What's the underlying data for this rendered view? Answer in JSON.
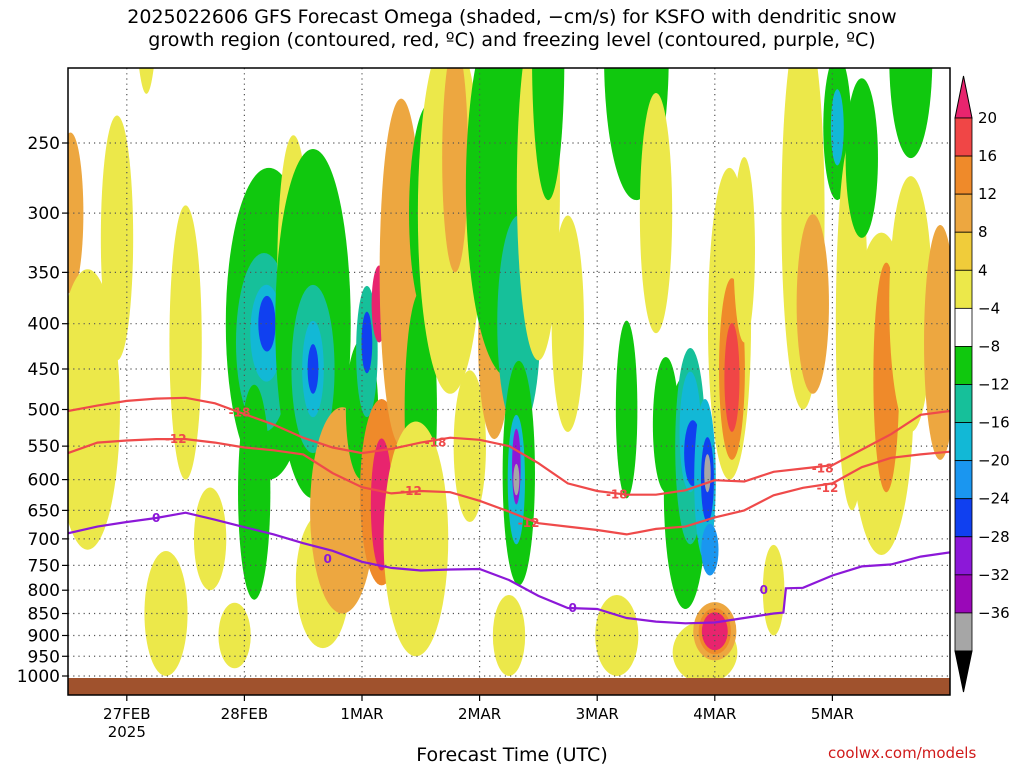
{
  "title": {
    "line1": "2025022606 GFS Forecast Omega (shaded, −cm/s) for KSFO with dendritic snow",
    "line2": "growth region (contoured, red, ºC) and freezing level (contoured, purple, ºC)"
  },
  "credit": "coolwx.com/models",
  "chart_data": {
    "type": "heatmap",
    "xlabel": "Forecast Time (UTC)",
    "ylabel": "",
    "x_tick_labels": [
      "27FEB",
      "28FEB",
      "1MAR",
      "2MAR",
      "3MAR",
      "4MAR",
      "5MAR"
    ],
    "x_tick_hours": [
      18,
      42,
      66,
      90,
      114,
      138,
      162
    ],
    "x_sublabel": "2025",
    "xlim_hours": [
      6,
      186
    ],
    "y_ticks": [
      250,
      300,
      350,
      400,
      450,
      500,
      550,
      600,
      650,
      700,
      750,
      800,
      850,
      900,
      950,
      1000
    ],
    "ylim": [
      200,
      1025
    ],
    "y_scale": "log-pressure",
    "grid": true,
    "colorbar": {
      "labels": [
        "20",
        "16",
        "12",
        "8",
        "4",
        "−4",
        "−8",
        "−12",
        "−16",
        "−20",
        "−24",
        "−28",
        "−32",
        "−36"
      ],
      "colors": [
        "#e8246e",
        "#f04646",
        "#ef8a2a",
        "#eda740",
        "#f0cc3a",
        "#ece84a",
        "#ffffff",
        "#10c80e",
        "#16c09a",
        "#12b8d6",
        "#1a96f0",
        "#1040f0",
        "#8c18d8",
        "#9a08b8",
        "#a6a6a6",
        "#000000"
      ]
    },
    "omega_regions": [
      {
        "x": 6.5,
        "p": 300,
        "rx": 1.2,
        "rp": 70,
        "level": 8
      },
      {
        "x": 10,
        "p": 500,
        "rx": 3,
        "rp": 220,
        "level": 4
      },
      {
        "x": 16,
        "p": 320,
        "rx": 1.5,
        "rp": 120,
        "level": 4
      },
      {
        "x": 22,
        "p": 150,
        "rx": 1.2,
        "rp": 70,
        "level": 4
      },
      {
        "x": 26,
        "p": 850,
        "rx": 2,
        "rp": 150,
        "level": 4
      },
      {
        "x": 30,
        "p": 420,
        "rx": 1.5,
        "rp": 180,
        "level": 4
      },
      {
        "x": 35,
        "p": 700,
        "rx": 1.5,
        "rp": 100,
        "level": 4
      },
      {
        "x": 40,
        "p": 900,
        "rx": 1.5,
        "rp": 80,
        "level": 4
      },
      {
        "x": 47,
        "p": 400,
        "rx": 4,
        "rp": 200,
        "level": -8
      },
      {
        "x": 46,
        "p": 420,
        "rx": 2.6,
        "rp": 110,
        "level": -12
      },
      {
        "x": 46.5,
        "p": 410,
        "rx": 1.5,
        "rp": 55,
        "level": -16
      },
      {
        "x": 46.6,
        "p": 400,
        "rx": 0.8,
        "rp": 30,
        "level": -24
      },
      {
        "x": 44,
        "p": 620,
        "rx": 1.5,
        "rp": 200,
        "level": -8
      },
      {
        "x": 52,
        "p": 350,
        "rx": 1.5,
        "rp": 150,
        "level": 4
      },
      {
        "x": 56,
        "p": 400,
        "rx": 3.5,
        "rp": 230,
        "level": -8
      },
      {
        "x": 56,
        "p": 450,
        "rx": 2,
        "rp": 110,
        "level": -12
      },
      {
        "x": 56,
        "p": 450,
        "rx": 1,
        "rp": 60,
        "level": -16
      },
      {
        "x": 56,
        "p": 450,
        "rx": 0.5,
        "rp": 30,
        "level": -24
      },
      {
        "x": 58,
        "p": 780,
        "rx": 2.5,
        "rp": 150,
        "level": 4
      },
      {
        "x": 62,
        "p": 650,
        "rx": 3,
        "rp": 200,
        "level": 8
      },
      {
        "x": 66,
        "p": 500,
        "rx": 1.5,
        "rp": 100,
        "level": -8
      },
      {
        "x": 67,
        "p": 430,
        "rx": 1,
        "rp": 80,
        "level": -12
      },
      {
        "x": 67,
        "p": 420,
        "rx": 0.5,
        "rp": 35,
        "level": -24
      },
      {
        "x": 70,
        "p": 620,
        "rx": 2,
        "rp": 170,
        "level": 12
      },
      {
        "x": 70,
        "p": 640,
        "rx": 1,
        "rp": 120,
        "level": 20
      },
      {
        "x": 69.5,
        "p": 380,
        "rx": 0.7,
        "rp": 40,
        "level": 20
      },
      {
        "x": 74,
        "p": 350,
        "rx": 2,
        "rp": 200,
        "level": 8
      },
      {
        "x": 78,
        "p": 500,
        "rx": 1.5,
        "rp": 180,
        "level": -8
      },
      {
        "x": 77,
        "p": 700,
        "rx": 3,
        "rp": 250,
        "level": 4
      },
      {
        "x": 80,
        "p": 300,
        "rx": 2,
        "rp": 100,
        "level": -8
      },
      {
        "x": 84,
        "p": 300,
        "rx": 3,
        "rp": 180,
        "level": 4
      },
      {
        "x": 85,
        "p": 260,
        "rx": 1.2,
        "rp": 90,
        "level": 8
      },
      {
        "x": 88,
        "p": 550,
        "rx": 1.5,
        "rp": 120,
        "level": 4
      },
      {
        "x": 93,
        "p": 420,
        "rx": 1.5,
        "rp": 120,
        "level": 8
      },
      {
        "x": 96,
        "p": 280,
        "rx": 4,
        "rp": 180,
        "level": -8
      },
      {
        "x": 98,
        "p": 400,
        "rx": 2,
        "rp": 130,
        "level": -12
      },
      {
        "x": 98,
        "p": 590,
        "rx": 1.5,
        "rp": 200,
        "level": -8
      },
      {
        "x": 97.5,
        "p": 600,
        "rx": 0.8,
        "rp": 110,
        "level": -16
      },
      {
        "x": 97.5,
        "p": 580,
        "rx": 0.4,
        "rp": 60,
        "level": -28
      },
      {
        "x": 97.5,
        "p": 600,
        "rx": 0.2,
        "rp": 25,
        "level": -32
      },
      {
        "x": 96,
        "p": 900,
        "rx": 1.5,
        "rp": 100,
        "level": 4
      },
      {
        "x": 102,
        "p": 280,
        "rx": 2,
        "rp": 160,
        "level": 4
      },
      {
        "x": 104,
        "p": 200,
        "rx": 1.5,
        "rp": 90,
        "level": -8
      },
      {
        "x": 108,
        "p": 400,
        "rx": 1.5,
        "rp": 130,
        "level": 4
      },
      {
        "x": 118,
        "p": 900,
        "rx": 2,
        "rp": 100,
        "level": 4
      },
      {
        "x": 122,
        "p": 200,
        "rx": 3,
        "rp": 90,
        "level": -8
      },
      {
        "x": 120,
        "p": 500,
        "rx": 1,
        "rp": 130,
        "level": -8
      },
      {
        "x": 126,
        "p": 300,
        "rx": 1.5,
        "rp": 110,
        "level": 4
      },
      {
        "x": 128,
        "p": 520,
        "rx": 1.2,
        "rp": 100,
        "level": -8
      },
      {
        "x": 132,
        "p": 620,
        "rx": 2,
        "rp": 220,
        "level": -8
      },
      {
        "x": 133,
        "p": 550,
        "rx": 1.4,
        "rp": 160,
        "level": -12
      },
      {
        "x": 133,
        "p": 530,
        "rx": 1,
        "rp": 90,
        "level": -16
      },
      {
        "x": 133.5,
        "p": 560,
        "rx": 0.8,
        "rp": 50,
        "level": -24
      },
      {
        "x": 136,
        "p": 600,
        "rx": 1,
        "rp": 140,
        "level": -16
      },
      {
        "x": 136.5,
        "p": 600,
        "rx": 0.6,
        "rp": 70,
        "level": -24
      },
      {
        "x": 136.5,
        "p": 590,
        "rx": 0.3,
        "rp": 30,
        "level": -32
      },
      {
        "x": 137,
        "p": 720,
        "rx": 0.8,
        "rp": 50,
        "level": -20
      },
      {
        "x": 136,
        "p": 940,
        "rx": 3,
        "rp": 80,
        "level": 4
      },
      {
        "x": 138,
        "p": 890,
        "rx": 2,
        "rp": 70,
        "level": 8
      },
      {
        "x": 138,
        "p": 890,
        "rx": 1.5,
        "rp": 55,
        "level": 12
      },
      {
        "x": 138,
        "p": 890,
        "rx": 1.2,
        "rp": 45,
        "level": 20
      },
      {
        "x": 141,
        "p": 400,
        "rx": 2,
        "rp": 200,
        "level": 4
      },
      {
        "x": 141.5,
        "p": 450,
        "rx": 1.2,
        "rp": 120,
        "level": 12
      },
      {
        "x": 141.5,
        "p": 460,
        "rx": 0.7,
        "rp": 70,
        "level": 16
      },
      {
        "x": 144,
        "p": 330,
        "rx": 1,
        "rp": 90,
        "level": 4
      },
      {
        "x": 150,
        "p": 800,
        "rx": 1,
        "rp": 100,
        "level": 4
      },
      {
        "x": 156,
        "p": 300,
        "rx": 2,
        "rp": 200,
        "level": 4
      },
      {
        "x": 158,
        "p": 380,
        "rx": 1.5,
        "rp": 100,
        "level": 8
      },
      {
        "x": 163,
        "p": 240,
        "rx": 1.3,
        "rp": 50,
        "level": -8
      },
      {
        "x": 163,
        "p": 240,
        "rx": 0.6,
        "rp": 25,
        "level": -16
      },
      {
        "x": 166,
        "p": 400,
        "rx": 1.5,
        "rp": 250,
        "level": 4
      },
      {
        "x": 168,
        "p": 260,
        "rx": 1.5,
        "rp": 60,
        "level": -8
      },
      {
        "x": 172,
        "p": 480,
        "rx": 3,
        "rp": 250,
        "level": 4
      },
      {
        "x": 173,
        "p": 460,
        "rx": 1.2,
        "rp": 160,
        "level": 12
      },
      {
        "x": 178,
        "p": 380,
        "rx": 2,
        "rp": 150,
        "level": 4
      },
      {
        "x": 178,
        "p": 200,
        "rx": 2,
        "rp": 60,
        "level": -8
      },
      {
        "x": 184,
        "p": 420,
        "rx": 1.5,
        "rp": 150,
        "level": 8
      }
    ],
    "contours": [
      {
        "name": "-18",
        "color": "#ef4a4a",
        "labels": [
          {
            "x": 41,
            "p": 504,
            "text": "-18"
          },
          {
            "x": 81,
            "p": 545,
            "text": "-18"
          },
          {
            "x": 118,
            "p": 624,
            "text": "-18"
          },
          {
            "x": 160,
            "p": 583,
            "text": "-18"
          }
        ],
        "points": [
          [
            6,
            502
          ],
          [
            12,
            495
          ],
          [
            18,
            489
          ],
          [
            24,
            486
          ],
          [
            30,
            485
          ],
          [
            36,
            492
          ],
          [
            42,
            506
          ],
          [
            48,
            520
          ],
          [
            54,
            538
          ],
          [
            60,
            552
          ],
          [
            66,
            560
          ],
          [
            72,
            554
          ],
          [
            78,
            545
          ],
          [
            84,
            538
          ],
          [
            90,
            541
          ],
          [
            96,
            550
          ],
          [
            102,
            575
          ],
          [
            108,
            606
          ],
          [
            114,
            618
          ],
          [
            120,
            624
          ],
          [
            126,
            624
          ],
          [
            132,
            617
          ],
          [
            138,
            601
          ],
          [
            144,
            603
          ],
          [
            150,
            588
          ],
          [
            156,
            583
          ],
          [
            162,
            578
          ],
          [
            168,
            555
          ],
          [
            174,
            533
          ],
          [
            180,
            507
          ],
          [
            186,
            502
          ]
        ]
      },
      {
        "name": "-12",
        "color": "#ef4a4a",
        "labels": [
          {
            "x": 28,
            "p": 540,
            "text": "-12"
          },
          {
            "x": 76,
            "p": 618,
            "text": "-12"
          },
          {
            "x": 100,
            "p": 672,
            "text": "-12"
          },
          {
            "x": 161,
            "p": 613,
            "text": "-12"
          }
        ],
        "points": [
          [
            6,
            560
          ],
          [
            12,
            545
          ],
          [
            18,
            542
          ],
          [
            24,
            540
          ],
          [
            30,
            540
          ],
          [
            36,
            545
          ],
          [
            42,
            552
          ],
          [
            48,
            556
          ],
          [
            54,
            562
          ],
          [
            60,
            590
          ],
          [
            66,
            612
          ],
          [
            72,
            622
          ],
          [
            78,
            618
          ],
          [
            84,
            620
          ],
          [
            90,
            634
          ],
          [
            96,
            652
          ],
          [
            102,
            672
          ],
          [
            108,
            678
          ],
          [
            114,
            684
          ],
          [
            120,
            692
          ],
          [
            126,
            682
          ],
          [
            132,
            678
          ],
          [
            138,
            662
          ],
          [
            144,
            650
          ],
          [
            150,
            625
          ],
          [
            156,
            613
          ],
          [
            162,
            606
          ],
          [
            168,
            581
          ],
          [
            174,
            567
          ],
          [
            180,
            562
          ],
          [
            186,
            558
          ]
        ]
      },
      {
        "name": "0",
        "color": "#8c18d8",
        "labels": [
          {
            "x": 24,
            "p": 663,
            "text": "0"
          },
          {
            "x": 59,
            "p": 738,
            "text": "0"
          },
          {
            "x": 109,
            "p": 838,
            "text": "0"
          },
          {
            "x": 148,
            "p": 800,
            "text": "0"
          }
        ],
        "points": [
          [
            6,
            690
          ],
          [
            12,
            678
          ],
          [
            18,
            670
          ],
          [
            24,
            663
          ],
          [
            30,
            654
          ],
          [
            36,
            666
          ],
          [
            42,
            679
          ],
          [
            48,
            692
          ],
          [
            54,
            708
          ],
          [
            60,
            722
          ],
          [
            66,
            743
          ],
          [
            72,
            755
          ],
          [
            78,
            760
          ],
          [
            84,
            758
          ],
          [
            90,
            757
          ],
          [
            96,
            779
          ],
          [
            102,
            812
          ],
          [
            108,
            838
          ],
          [
            114,
            840
          ],
          [
            120,
            860
          ],
          [
            126,
            868
          ],
          [
            132,
            872
          ],
          [
            138,
            870
          ],
          [
            144,
            860
          ],
          [
            150,
            850
          ],
          [
            152,
            848
          ],
          [
            152.5,
            796
          ],
          [
            156,
            795
          ],
          [
            162,
            770
          ],
          [
            168,
            752
          ],
          [
            174,
            748
          ],
          [
            180,
            733
          ],
          [
            186,
            725
          ]
        ]
      }
    ]
  }
}
